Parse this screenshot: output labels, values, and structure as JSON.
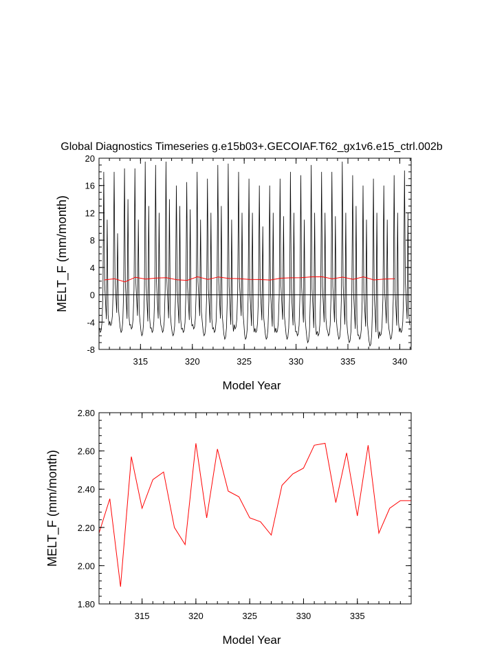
{
  "chart_data": [
    {
      "type": "line",
      "title": "Global Diagnostics Timeseries g.e15b03+.GECOIAF.T62_gx1v6.e15_ctrl.002b",
      "xlabel": "Model Year",
      "ylabel": "MELT_F (mm/month)",
      "xlim": [
        311.0,
        341.1
      ],
      "ylim": [
        -8,
        20
      ],
      "xticks": [
        315,
        320,
        325,
        330,
        335,
        340
      ],
      "yticks": [
        -8,
        -4,
        0,
        4,
        8,
        12,
        16,
        20
      ],
      "grid": false,
      "zero_line": true,
      "series": [
        {
          "color": "#000000",
          "monthly": true,
          "start_year": 311,
          "annual_peaks": [
            18.0,
            18.0,
            18.5,
            18.5,
            19.5,
            19.0,
            19.5,
            16.0,
            16.5,
            18.0,
            17.0,
            19.0,
            19.2,
            18.0,
            17.0,
            16.0,
            16.0,
            17.0,
            18.0,
            17.5,
            19.0,
            18.0,
            18.0,
            19.5,
            17.5,
            16.0,
            17.0,
            16.0,
            17.5,
            18.2
          ],
          "annual_troughs": [
            -5.5,
            -4.5,
            -5.5,
            -5.0,
            -6.0,
            -5.5,
            -5.5,
            -6.0,
            -5.5,
            -5.0,
            -6.0,
            -5.5,
            -6.5,
            -5.0,
            -6.5,
            -5.5,
            -6.5,
            -5.5,
            -6.5,
            -6.0,
            -7.0,
            -6.0,
            -6.0,
            -6.5,
            -7.0,
            -6.5,
            -7.5,
            -6.0,
            -6.5,
            -5.5
          ],
          "secondary_peaks": [
            11.0,
            9.0,
            14.0,
            11.0,
            13.0,
            12.0,
            14.0,
            13.0,
            12.5,
            11.0,
            12.0,
            13.0,
            11.0,
            12.0,
            12.0,
            10.0,
            12.0,
            11.5,
            12.0,
            11.0,
            12.0,
            12.0,
            11.5,
            12.0,
            13.0,
            11.0,
            12.0,
            11.0,
            12.0,
            12.0
          ]
        },
        {
          "color": "#ff0000",
          "x": [
            311.5,
            312.5,
            313.5,
            314.5,
            315.5,
            316.5,
            317.5,
            318.5,
            319.5,
            320.5,
            321.5,
            322.5,
            323.5,
            324.5,
            325.5,
            326.5,
            327.5,
            328.5,
            329.5,
            330.5,
            331.5,
            332.5,
            333.5,
            334.5,
            335.5,
            336.5,
            337.5,
            338.5,
            339.5
          ],
          "y": [
            2.17,
            2.35,
            1.89,
            2.57,
            2.3,
            2.45,
            2.49,
            2.2,
            2.11,
            2.64,
            2.25,
            2.61,
            2.39,
            2.36,
            2.25,
            2.23,
            2.16,
            2.42,
            2.48,
            2.51,
            2.63,
            2.64,
            2.33,
            2.59,
            2.26,
            2.63,
            2.17,
            2.3,
            2.34
          ]
        }
      ]
    },
    {
      "type": "line",
      "title": "",
      "xlabel": "Model Year",
      "ylabel": "MELT_F (mm/month)",
      "xlim": [
        311.0,
        340.0
      ],
      "ylim": [
        1.8,
        2.8
      ],
      "xticks": [
        315,
        320,
        325,
        330,
        335
      ],
      "yticks": [
        "1.80",
        "2.00",
        "2.20",
        "2.40",
        "2.60",
        "2.80"
      ],
      "grid": false,
      "series": [
        {
          "color": "#ff0000",
          "x": [
            311.0,
            312.0,
            313.0,
            314.0,
            315.0,
            316.0,
            317.0,
            318.0,
            319.0,
            320.0,
            321.0,
            322.0,
            323.0,
            324.0,
            325.0,
            326.0,
            327.0,
            328.0,
            329.0,
            330.0,
            331.0,
            332.0,
            333.0,
            334.0,
            335.0,
            336.0,
            337.0,
            338.0,
            339.0,
            340.0
          ],
          "y": [
            2.17,
            2.35,
            1.89,
            2.57,
            2.3,
            2.45,
            2.49,
            2.2,
            2.11,
            2.64,
            2.25,
            2.61,
            2.39,
            2.36,
            2.25,
            2.23,
            2.16,
            2.42,
            2.48,
            2.51,
            2.63,
            2.64,
            2.33,
            2.59,
            2.26,
            2.63,
            2.17,
            2.3,
            2.34,
            2.34
          ]
        }
      ]
    }
  ]
}
